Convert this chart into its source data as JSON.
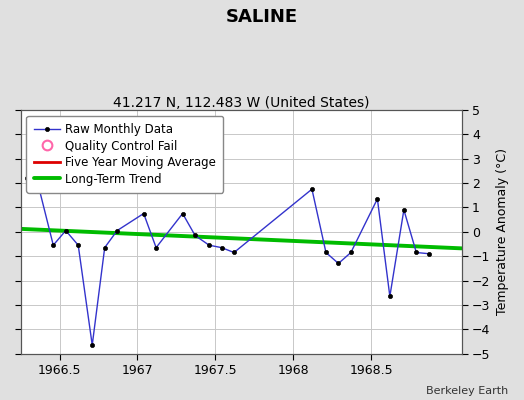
{
  "title": "SALINE",
  "subtitle": "41.217 N, 112.483 W (United States)",
  "credit": "Berkeley Earth",
  "ylabel": "Temperature Anomaly (°C)",
  "xlim": [
    1966.25,
    1969.08
  ],
  "ylim": [
    -5,
    5
  ],
  "xticks": [
    1966.5,
    1967.0,
    1967.5,
    1968.0,
    1968.5
  ],
  "yticks": [
    -5,
    -4,
    -3,
    -2,
    -1,
    0,
    1,
    2,
    3,
    4,
    5
  ],
  "raw_x": [
    1966.29,
    1966.37,
    1966.46,
    1966.54,
    1966.62,
    1966.71,
    1966.79,
    1966.87,
    1967.04,
    1967.12,
    1967.29,
    1967.37,
    1967.46,
    1967.54,
    1967.62,
    1968.12,
    1968.21,
    1968.29,
    1968.37,
    1968.54,
    1968.62,
    1968.71,
    1968.79,
    1968.87
  ],
  "raw_y": [
    2.2,
    1.75,
    -0.55,
    0.05,
    -0.55,
    -4.65,
    -0.65,
    0.05,
    0.75,
    -0.65,
    0.75,
    -0.15,
    -0.55,
    -0.65,
    -0.85,
    1.75,
    -0.85,
    -1.3,
    -0.85,
    1.35,
    -2.65,
    0.9,
    -0.85,
    -0.9
  ],
  "trend_x": [
    1966.25,
    1969.08
  ],
  "trend_y": [
    0.12,
    -0.68
  ],
  "raw_color": "#3333cc",
  "raw_marker_color": "#000000",
  "trend_color": "#00bb00",
  "moving_avg_color": "#dd0000",
  "qc_fail_color": "#ff66aa",
  "background_color": "#e0e0e0",
  "plot_bg_color": "#ffffff",
  "grid_color": "#c8c8c8",
  "title_fontsize": 13,
  "subtitle_fontsize": 10,
  "ylabel_fontsize": 9,
  "tick_fontsize": 9,
  "legend_fontsize": 8.5,
  "credit_fontsize": 8
}
